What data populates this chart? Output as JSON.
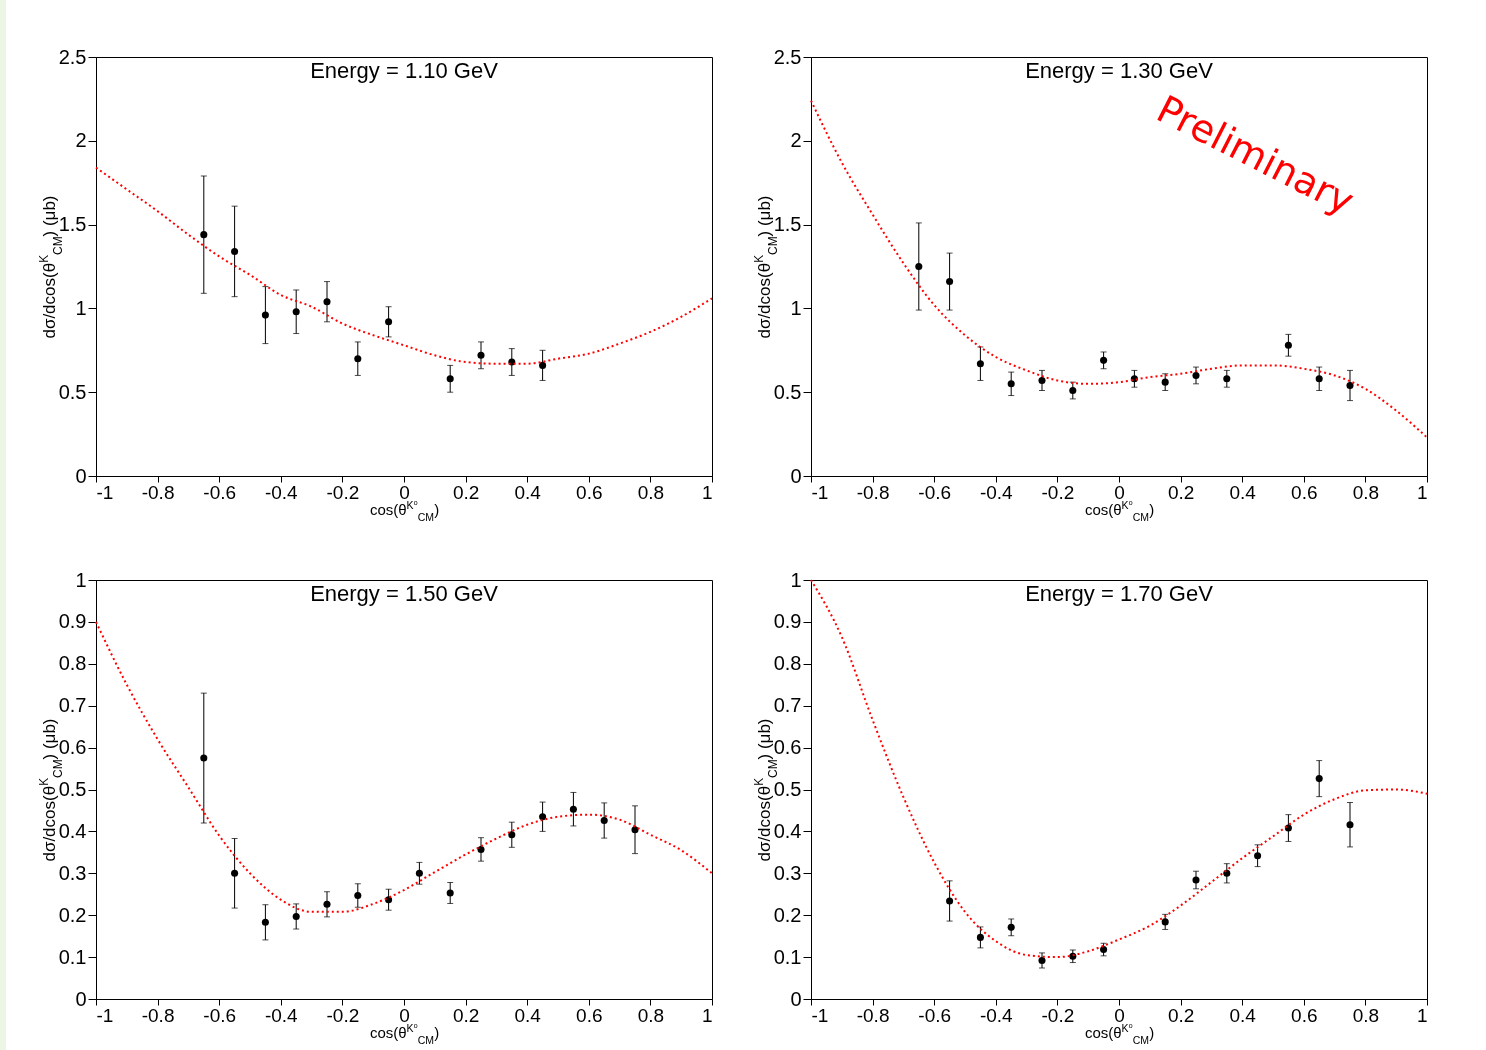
{
  "chart_data": [
    {
      "type": "scatter",
      "title": "Energy = 1.10 GeV",
      "xlabel": "cos(θ$^{K⁰}$$_{CM}$)",
      "ylabel": "dσ/dcos(θ$^{K}$$_{CM}$) (μb)",
      "xlim": [
        -1,
        1
      ],
      "xticks": [
        -1,
        -0.8,
        -0.6,
        -0.4,
        -0.2,
        0,
        0.2,
        0.4,
        0.6,
        0.8,
        1
      ],
      "ylim": [
        0,
        2.5
      ],
      "yticks": [
        0,
        0.5,
        1,
        1.5,
        2,
        2.5
      ],
      "grid": false,
      "series": [
        {
          "type": "scatter",
          "marker": "circle",
          "color": "#000000",
          "x": [
            -0.65,
            -0.55,
            -0.45,
            -0.35,
            -0.25,
            -0.15,
            -0.05,
            0.15,
            0.25,
            0.35,
            0.45
          ],
          "values": [
            1.44,
            1.34,
            0.96,
            0.98,
            1.04,
            0.7,
            0.92,
            0.58,
            0.72,
            0.68,
            0.66
          ],
          "errors": [
            0.35,
            0.27,
            0.17,
            0.13,
            0.12,
            0.1,
            0.09,
            0.08,
            0.08,
            0.08,
            0.09
          ]
        },
        {
          "type": "line",
          "color": "#ff0000",
          "line_style": "dotted",
          "x": [
            -1,
            -0.9,
            -0.8,
            -0.7,
            -0.6,
            -0.5,
            -0.4,
            -0.3,
            -0.2,
            -0.1,
            0,
            0.1,
            0.2,
            0.3,
            0.4,
            0.5,
            0.6,
            0.7,
            0.8,
            0.9,
            1
          ],
          "values": [
            1.84,
            1.71,
            1.58,
            1.44,
            1.31,
            1.2,
            1.08,
            1.01,
            0.91,
            0.84,
            0.78,
            0.72,
            0.68,
            0.67,
            0.67,
            0.7,
            0.73,
            0.79,
            0.86,
            0.95,
            1.06
          ]
        }
      ]
    },
    {
      "type": "scatter",
      "title": "Energy = 1.30 GeV",
      "xlabel": "cos(θ$^{K⁰}$$_{CM}$)",
      "ylabel": "dσ/dcos(θ$^{K}$$_{CM}$) (μb)",
      "xlim": [
        -1,
        1
      ],
      "xticks": [
        -1,
        -0.8,
        -0.6,
        -0.4,
        -0.2,
        0,
        0.2,
        0.4,
        0.6,
        0.8,
        1
      ],
      "ylim": [
        0,
        2.5
      ],
      "yticks": [
        0,
        0.5,
        1,
        1.5,
        2,
        2.5
      ],
      "grid": false,
      "annotations": [
        "Preliminary"
      ],
      "series": [
        {
          "type": "scatter",
          "marker": "circle",
          "color": "#000000",
          "x": [
            -0.65,
            -0.55,
            -0.45,
            -0.35,
            -0.25,
            -0.15,
            -0.05,
            0.05,
            0.15,
            0.25,
            0.35,
            0.55,
            0.65,
            0.75
          ],
          "values": [
            1.25,
            1.16,
            0.67,
            0.55,
            0.57,
            0.51,
            0.69,
            0.58,
            0.56,
            0.6,
            0.58,
            0.78,
            0.58,
            0.54
          ],
          "errors": [
            0.26,
            0.17,
            0.1,
            0.07,
            0.06,
            0.05,
            0.05,
            0.05,
            0.05,
            0.05,
            0.05,
            0.065,
            0.07,
            0.09
          ]
        },
        {
          "type": "line",
          "color": "#ff0000",
          "line_style": "dotted",
          "x": [
            -1,
            -0.9,
            -0.8,
            -0.7,
            -0.6,
            -0.5,
            -0.4,
            -0.3,
            -0.2,
            -0.1,
            0,
            0.1,
            0.2,
            0.3,
            0.4,
            0.5,
            0.6,
            0.7,
            0.8,
            0.9,
            1
          ],
          "values": [
            2.24,
            1.87,
            1.56,
            1.27,
            1.02,
            0.84,
            0.71,
            0.63,
            0.57,
            0.55,
            0.56,
            0.59,
            0.61,
            0.64,
            0.66,
            0.66,
            0.64,
            0.6,
            0.52,
            0.39,
            0.23
          ]
        }
      ]
    },
    {
      "type": "scatter",
      "title": "Energy = 1.50 GeV",
      "xlabel": "cos(θ$^{K⁰}$$_{CM}$)",
      "ylabel": "dσ/dcos(θ$^{K}$$_{CM}$) (μb)",
      "xlim": [
        -1,
        1
      ],
      "xticks": [
        -1,
        -0.8,
        -0.6,
        -0.4,
        -0.2,
        0,
        0.2,
        0.4,
        0.6,
        0.8,
        1
      ],
      "ylim": [
        0,
        1
      ],
      "yticks": [
        0,
        0.1,
        0.2,
        0.3,
        0.4,
        0.5,
        0.6,
        0.7,
        0.8,
        0.9,
        1
      ],
      "grid": false,
      "series": [
        {
          "type": "scatter",
          "marker": "circle",
          "color": "#000000",
          "x": [
            -0.65,
            -0.55,
            -0.45,
            -0.35,
            -0.25,
            -0.15,
            -0.05,
            0.05,
            0.15,
            0.25,
            0.35,
            0.45,
            0.55,
            0.65,
            0.75
          ],
          "values": [
            0.575,
            0.3,
            0.183,
            0.197,
            0.226,
            0.247,
            0.237,
            0.3,
            0.253,
            0.357,
            0.392,
            0.435,
            0.453,
            0.426,
            0.404
          ],
          "errors": [
            0.155,
            0.083,
            0.042,
            0.03,
            0.03,
            0.028,
            0.025,
            0.026,
            0.025,
            0.028,
            0.03,
            0.035,
            0.04,
            0.042,
            0.057
          ]
        },
        {
          "type": "line",
          "color": "#ff0000",
          "line_style": "dotted",
          "x": [
            -1,
            -0.9,
            -0.8,
            -0.7,
            -0.6,
            -0.5,
            -0.4,
            -0.3,
            -0.2,
            -0.1,
            0,
            0.1,
            0.2,
            0.3,
            0.4,
            0.5,
            0.6,
            0.7,
            0.8,
            0.9,
            1
          ],
          "values": [
            0.9,
            0.75,
            0.62,
            0.505,
            0.39,
            0.3,
            0.237,
            0.208,
            0.208,
            0.227,
            0.26,
            0.303,
            0.345,
            0.383,
            0.416,
            0.435,
            0.44,
            0.428,
            0.392,
            0.355,
            0.3
          ]
        }
      ]
    },
    {
      "type": "scatter",
      "title": "Energy = 1.70 GeV",
      "xlabel": "cos(θ$^{K⁰}$$_{CM}$)",
      "ylabel": "dσ/dcos(θ$^{K}$$_{CM}$) (μb)",
      "xlim": [
        -1,
        1
      ],
      "xticks": [
        -1,
        -0.8,
        -0.6,
        -0.4,
        -0.2,
        0,
        0.2,
        0.4,
        0.6,
        0.8,
        1
      ],
      "ylim": [
        0,
        1
      ],
      "yticks": [
        0,
        0.1,
        0.2,
        0.3,
        0.4,
        0.5,
        0.6,
        0.7,
        0.8,
        0.9,
        1
      ],
      "grid": false,
      "series": [
        {
          "type": "scatter",
          "marker": "circle",
          "color": "#000000",
          "x": [
            -0.55,
            -0.45,
            -0.35,
            -0.25,
            -0.15,
            -0.05,
            0.15,
            0.25,
            0.35,
            0.45,
            0.55,
            0.65,
            0.75
          ],
          "values": [
            0.234,
            0.147,
            0.171,
            0.092,
            0.102,
            0.118,
            0.184,
            0.284,
            0.3,
            0.342,
            0.408,
            0.526,
            0.416
          ],
          "errors": [
            0.048,
            0.025,
            0.02,
            0.018,
            0.015,
            0.015,
            0.018,
            0.021,
            0.023,
            0.026,
            0.032,
            0.043,
            0.053
          ]
        },
        {
          "type": "line",
          "color": "#ff0000",
          "line_style": "dotted",
          "x": [
            -1,
            -0.9,
            -0.8,
            -0.7,
            -0.6,
            -0.5,
            -0.4,
            -0.3,
            -0.2,
            -0.1,
            0,
            0.1,
            0.2,
            0.3,
            0.4,
            0.5,
            0.6,
            0.7,
            0.8,
            0.9,
            1
          ],
          "values": [
            1.0,
            0.864,
            0.666,
            0.482,
            0.326,
            0.208,
            0.138,
            0.105,
            0.1,
            0.114,
            0.142,
            0.175,
            0.223,
            0.279,
            0.336,
            0.388,
            0.44,
            0.477,
            0.498,
            0.5,
            0.49
          ]
        }
      ]
    }
  ]
}
